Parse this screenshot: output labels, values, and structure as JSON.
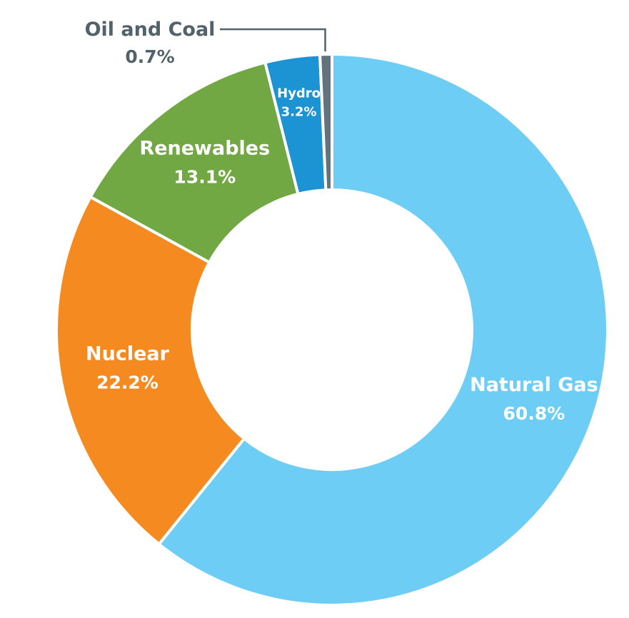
{
  "chart_data": {
    "type": "pie",
    "subtype": "donut",
    "slices": [
      {
        "label": "Natural Gas",
        "value": 60.8,
        "value_label": "60.8%",
        "color": "#6dcdf4"
      },
      {
        "label": "Nuclear",
        "value": 22.2,
        "value_label": "22.2%",
        "color": "#f58a20"
      },
      {
        "label": "Renewables",
        "value": 13.1,
        "value_label": "13.1%",
        "color": "#72a844"
      },
      {
        "label": "Hydro",
        "value": 3.2,
        "value_label": "3.2%",
        "color": "#1c93d2"
      },
      {
        "label": "Oil and Coal",
        "value": 0.7,
        "value_label": "0.7%",
        "color": "#62737e"
      }
    ],
    "title": "",
    "legend": "none"
  }
}
